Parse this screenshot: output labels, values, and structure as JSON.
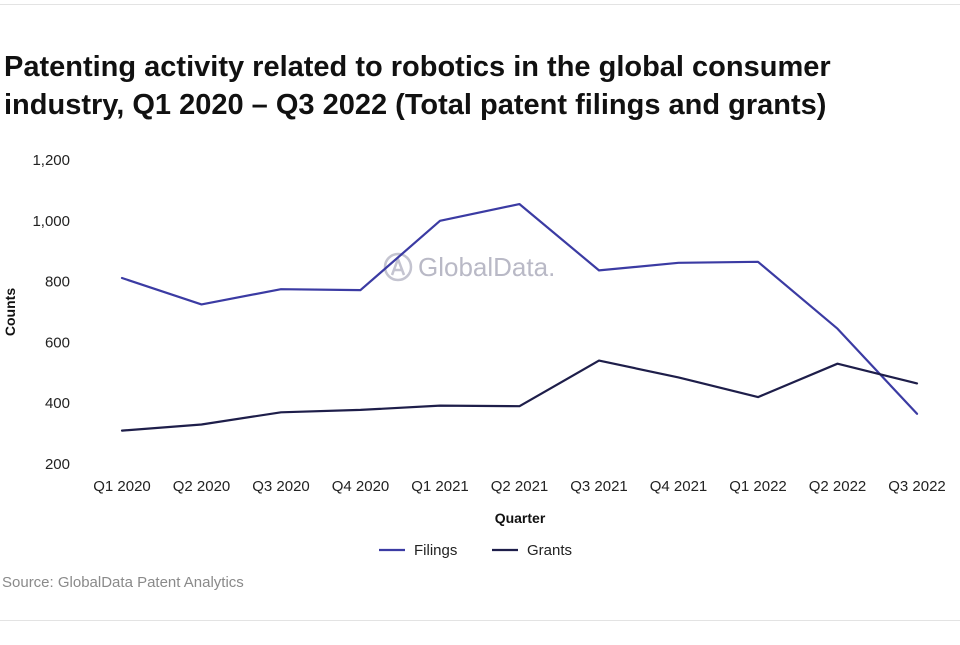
{
  "title": "Patenting activity related to robotics in the global consumer industry, Q1 2020 – Q3 2022 (Total patent filings and grants)",
  "source": "Source: GlobalData Patent Analytics",
  "watermark": "GlobalData.",
  "chart_data": {
    "type": "line",
    "title": "Patenting activity related to robotics in the global consumer industry, Q1 2020 – Q3 2022 (Total patent filings and grants)",
    "xlabel": "Quarter",
    "ylabel": "Counts",
    "categories": [
      "Q1 2020",
      "Q2 2020",
      "Q3 2020",
      "Q4 2020",
      "Q1 2021",
      "Q2 2021",
      "Q3 2021",
      "Q4 2021",
      "Q1 2022",
      "Q2 2022",
      "Q3 2022"
    ],
    "ylim": [
      200,
      1200
    ],
    "yticks": [
      200,
      400,
      600,
      800,
      1000,
      1200
    ],
    "ytick_labels": [
      "200",
      "400",
      "600",
      "800",
      "1,000",
      "1,200"
    ],
    "grid": false,
    "legend_position": "bottom",
    "series": [
      {
        "name": "Filings",
        "color": "#3b3ba3",
        "values": [
          812,
          725,
          775,
          772,
          1000,
          1055,
          837,
          862,
          865,
          645,
          365
        ]
      },
      {
        "name": "Grants",
        "color": "#1e1e4a",
        "values": [
          310,
          330,
          370,
          378,
          392,
          390,
          540,
          485,
          420,
          530,
          465
        ]
      }
    ]
  }
}
